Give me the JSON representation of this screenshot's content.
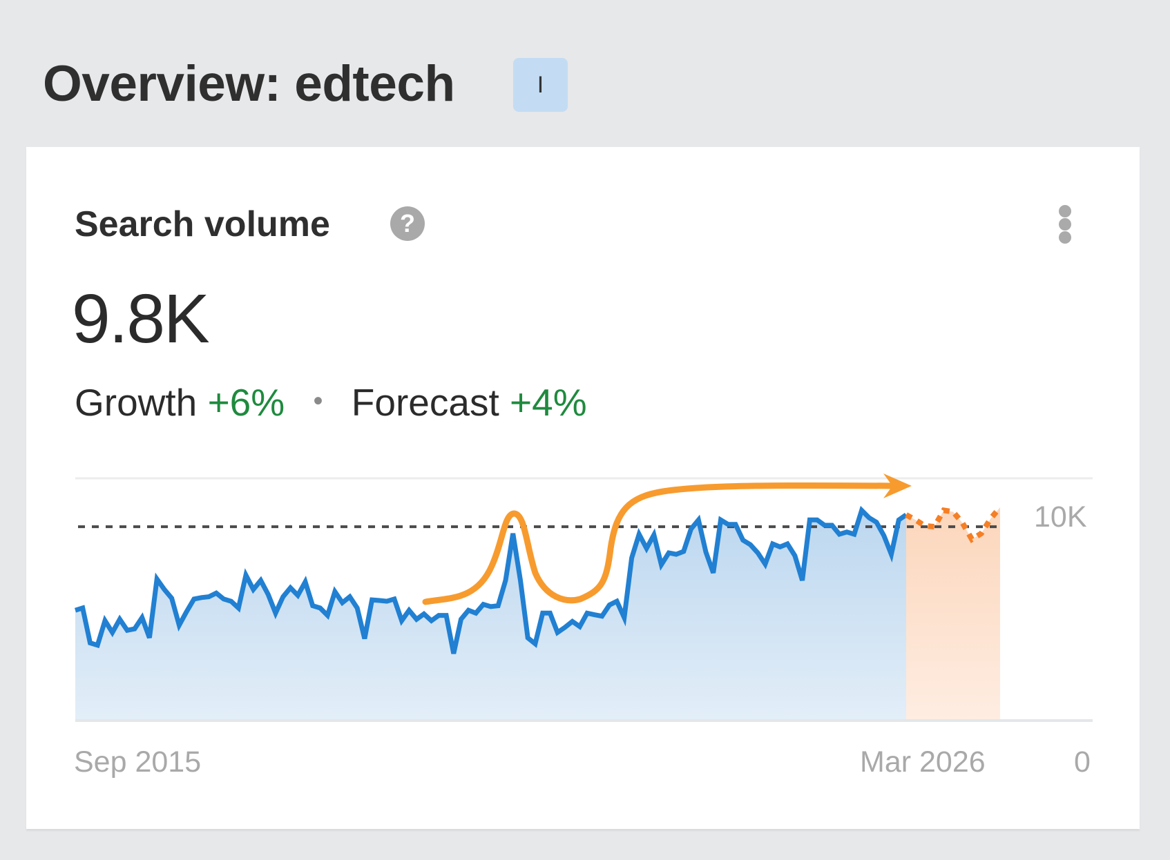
{
  "header": {
    "title": "Overview: edtech",
    "intent_badge": "I"
  },
  "card": {
    "title": "Search volume",
    "help_icon": "question-circle-icon",
    "menu_icon": "kebab-vertical-icon",
    "value": "9.8K",
    "growth_label": "Growth",
    "growth_value": "+6%",
    "separator": "•",
    "forecast_label": "Forecast",
    "forecast_value": "+4%"
  },
  "colors": {
    "history_line": "#2180d2",
    "history_fill_top": "#bcd7ef",
    "history_fill_bottom": "#e3eef8",
    "forecast_line": "#f57f25",
    "forecast_fill_top": "#fcd6bb",
    "forecast_fill_bottom": "#feede2",
    "annotation": "#f79b2e",
    "reference_line": "#4a4a4a",
    "positive": "#1f8a3e"
  },
  "chart_data": {
    "type": "area",
    "title": "Search volume",
    "x_start_label": "Sep 2015",
    "x_end_label": "Mar 2026",
    "y_tick_labels": [
      "10K",
      "0"
    ],
    "ylim": [
      0,
      11860
    ],
    "grid": true,
    "legend": null,
    "reference_line_value": 9490,
    "series": [
      {
        "name": "Search volume (history)",
        "style": "solid",
        "values": [
          5400,
          5510,
          3800,
          3690,
          4890,
          4310,
          4960,
          4420,
          4490,
          5040,
          4050,
          6930,
          6420,
          5990,
          4670,
          5330,
          5950,
          6020,
          6060,
          6240,
          5950,
          5840,
          5510,
          7120,
          6420,
          6860,
          6170,
          5260,
          6060,
          6500,
          6130,
          6790,
          5620,
          5510,
          5150,
          6310,
          5770,
          6060,
          5510,
          4010,
          5910,
          5880,
          5840,
          5950,
          4890,
          5400,
          4960,
          5220,
          4890,
          5150,
          5150,
          3280,
          4960,
          5400,
          5260,
          5690,
          5580,
          5620,
          6860,
          9160,
          6860,
          4050,
          3760,
          5260,
          5260,
          4310,
          4560,
          4850,
          4600,
          5260,
          5180,
          5110,
          5660,
          5840,
          5040,
          7960,
          9120,
          8430,
          9090,
          7630,
          8210,
          8140,
          8280,
          9380,
          9820,
          8250,
          7230,
          9820,
          9600,
          9600,
          8830,
          8610,
          8210,
          7660,
          8650,
          8500,
          8650,
          8070,
          6860,
          9820,
          9820,
          9560,
          9560,
          9120,
          9230,
          9120,
          10290,
          9930,
          9710,
          9050,
          8140,
          9820,
          10070
        ]
      },
      {
        "name": "Forecast",
        "style": "dotted",
        "values": [
          10070,
          9820,
          9530,
          9490,
          10290,
          10220,
          9670,
          8870,
          9160,
          9890,
          10440
        ]
      }
    ],
    "annotations": [
      {
        "type": "hand-drawn-arrow",
        "description": "orange curve tracing spike, dip, then rising trend with arrow pointing to forecast"
      }
    ]
  }
}
